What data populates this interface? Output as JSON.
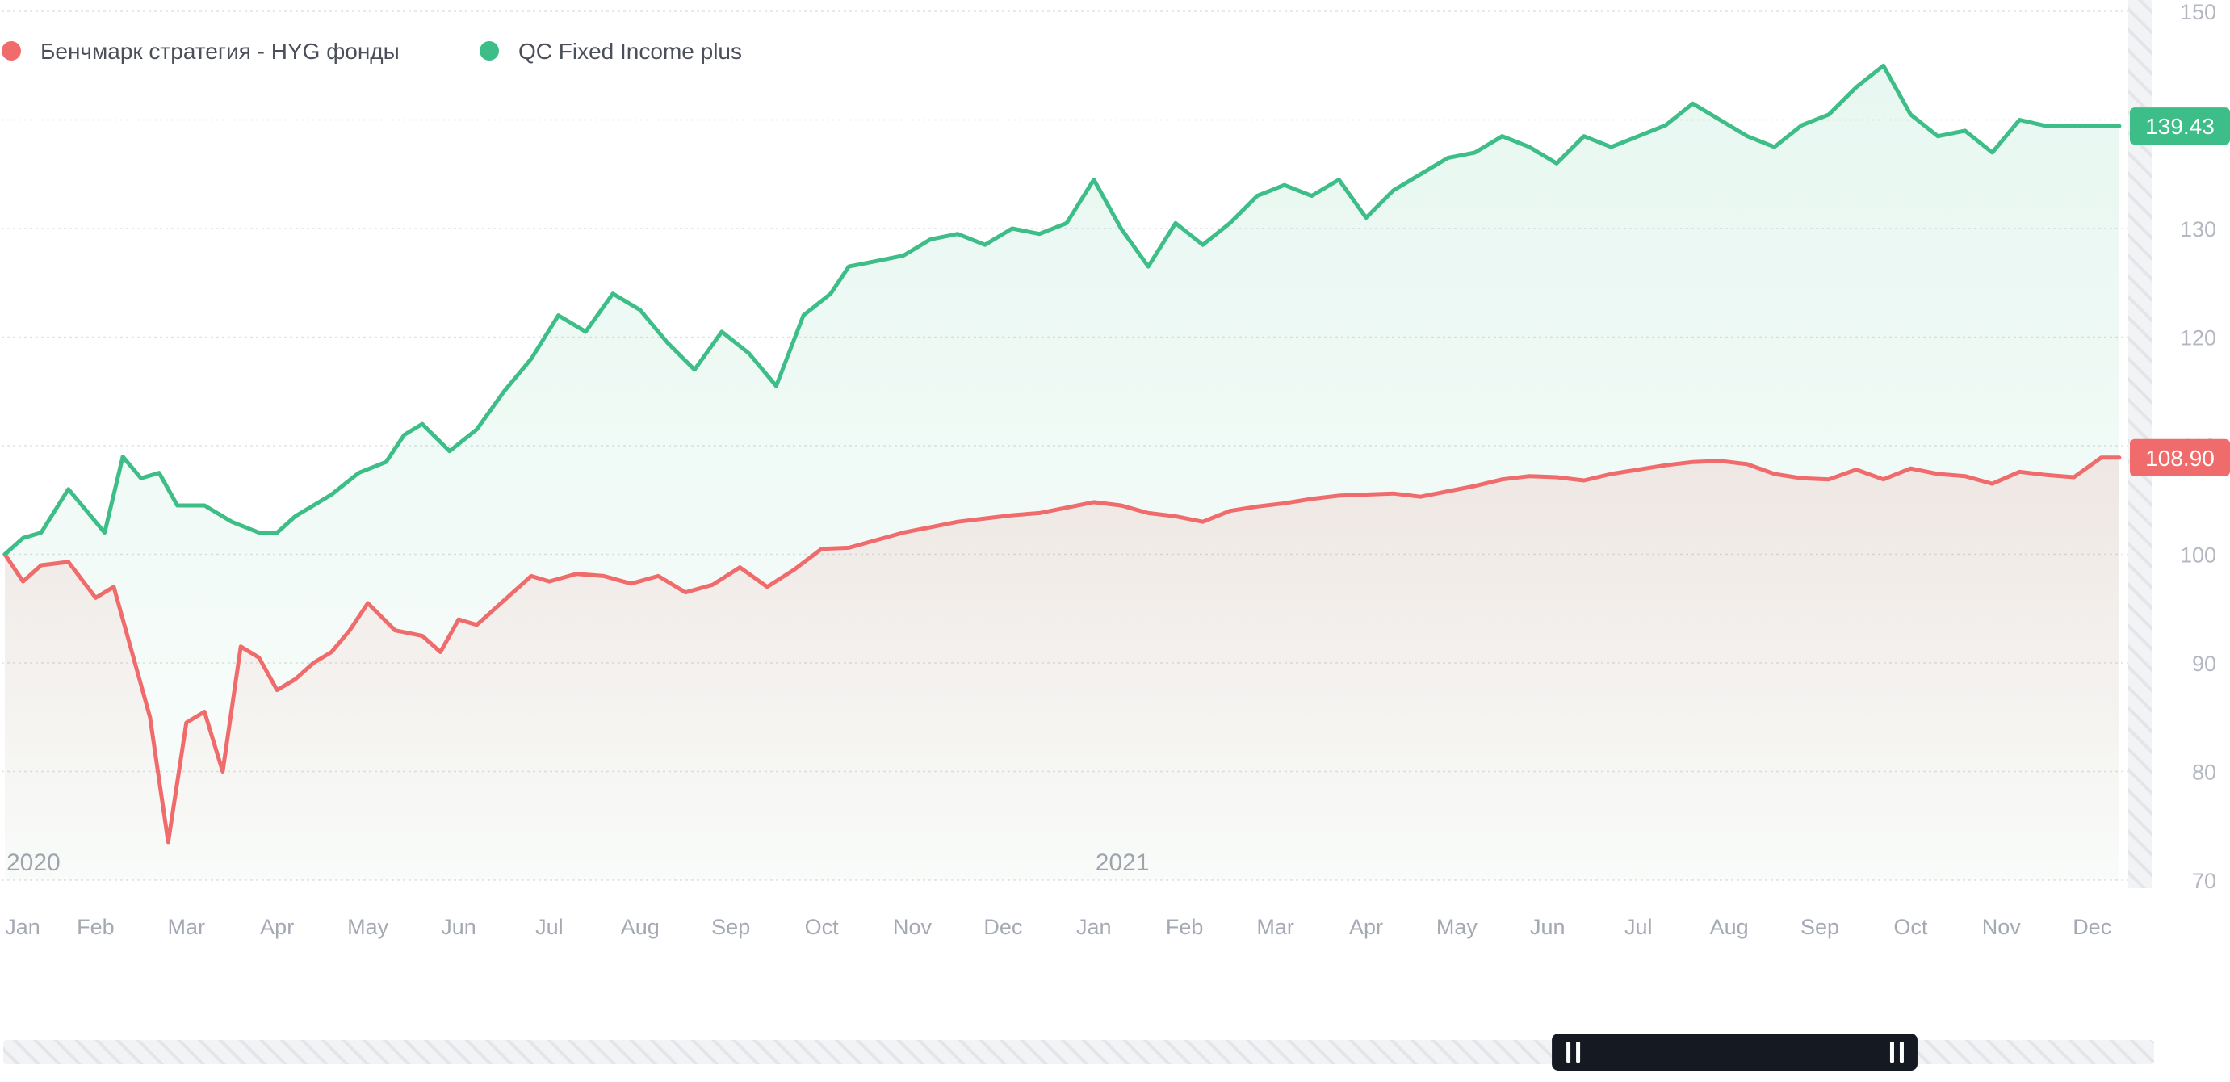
{
  "colors": {
    "benchmark": "#f06b6b",
    "strategy": "#3dbd87",
    "grid": "#dfe2e7",
    "tick": "#b3b8c2",
    "navigator_handle": "#151a22"
  },
  "chart_data": {
    "type": "line",
    "yaxis": {
      "ticks": [
        70,
        80,
        90,
        100,
        110,
        120,
        130,
        140,
        150
      ],
      "range": [
        70,
        150
      ],
      "position": "right",
      "grid": true
    },
    "xaxis": {
      "tick_labels": [
        "Jan",
        "Feb",
        "Mar",
        "Apr",
        "May",
        "Jun",
        "Jul",
        "Aug",
        "Sep",
        "Oct",
        "Nov",
        "Dec",
        "Jan",
        "Feb",
        "Mar",
        "Apr",
        "May",
        "Jun",
        "Jul",
        "Aug",
        "Sep",
        "Oct",
        "Nov",
        "Dec"
      ],
      "year_labels": [
        {
          "label": "2020",
          "month_index": 0
        },
        {
          "label": "2021",
          "month_index": 12
        }
      ],
      "range_months": [
        0,
        23.3
      ]
    },
    "legend": {
      "placement": "top-left"
    },
    "series": [
      {
        "name": "Бенчмарк стратегия - HYG фонды",
        "color": "#f06b6b",
        "last_value": "108.90",
        "x_month": [
          0,
          0.2,
          0.4,
          0.7,
          1.0,
          1.2,
          1.4,
          1.6,
          1.8,
          2.0,
          2.2,
          2.4,
          2.6,
          2.8,
          3.0,
          3.2,
          3.4,
          3.6,
          3.8,
          4.0,
          4.3,
          4.6,
          4.8,
          5.0,
          5.2,
          5.4,
          5.6,
          5.8,
          6.0,
          6.3,
          6.6,
          6.9,
          7.2,
          7.5,
          7.8,
          8.1,
          8.4,
          8.7,
          9.0,
          9.3,
          9.6,
          9.9,
          10.2,
          10.5,
          10.8,
          11.1,
          11.4,
          11.7,
          12.0,
          12.3,
          12.6,
          12.9,
          13.2,
          13.5,
          13.8,
          14.1,
          14.4,
          14.7,
          15.0,
          15.3,
          15.6,
          15.9,
          16.2,
          16.5,
          16.8,
          17.1,
          17.4,
          17.7,
          18.0,
          18.3,
          18.6,
          18.9,
          19.2,
          19.5,
          19.8,
          20.1,
          20.4,
          20.7,
          21.0,
          21.3,
          21.6,
          21.9,
          22.2,
          22.5,
          22.8,
          23.1,
          23.3
        ],
        "values": [
          100,
          97.5,
          99,
          99.3,
          96,
          97,
          91,
          85,
          73.5,
          84.5,
          85.5,
          80,
          91.5,
          90.5,
          87.5,
          88.5,
          90,
          91,
          93,
          95.5,
          93,
          92.5,
          91,
          94,
          93.5,
          95,
          96.5,
          98,
          97.5,
          98.2,
          98,
          97.3,
          98,
          96.5,
          97.2,
          98.8,
          97,
          98.6,
          100.5,
          100.6,
          101.3,
          102,
          102.5,
          103,
          103.3,
          103.6,
          103.8,
          104.3,
          104.8,
          104.5,
          103.8,
          103.5,
          103,
          104,
          104.4,
          104.7,
          105.1,
          105.4,
          105.5,
          105.6,
          105.3,
          105.8,
          106.3,
          106.9,
          107.2,
          107.1,
          106.8,
          107.4,
          107.8,
          108.2,
          108.5,
          108.6,
          108.3,
          107.4,
          107.0,
          106.9,
          107.8,
          106.9,
          107.9,
          107.4,
          107.2,
          106.5,
          107.6,
          107.3,
          107.1,
          108.9,
          108.9
        ]
      },
      {
        "name": "QC Fixed Income plus",
        "color": "#3dbd87",
        "last_value": "139.43",
        "x_month": [
          0,
          0.2,
          0.4,
          0.7,
          0.9,
          1.1,
          1.3,
          1.5,
          1.7,
          1.9,
          2.2,
          2.5,
          2.8,
          3.0,
          3.2,
          3.4,
          3.6,
          3.9,
          4.2,
          4.4,
          4.6,
          4.9,
          5.2,
          5.5,
          5.8,
          6.1,
          6.4,
          6.7,
          7.0,
          7.3,
          7.6,
          7.9,
          8.2,
          8.5,
          8.8,
          9.1,
          9.3,
          9.6,
          9.9,
          10.2,
          10.5,
          10.8,
          11.1,
          11.4,
          11.7,
          12.0,
          12.3,
          12.6,
          12.9,
          13.2,
          13.5,
          13.8,
          14.1,
          14.4,
          14.7,
          15.0,
          15.3,
          15.6,
          15.9,
          16.2,
          16.5,
          16.8,
          17.1,
          17.4,
          17.7,
          18.0,
          18.3,
          18.6,
          18.9,
          19.2,
          19.5,
          19.8,
          20.1,
          20.4,
          20.7,
          21.0,
          21.3,
          21.6,
          21.9,
          22.2,
          22.5,
          22.8,
          23.1,
          23.3
        ],
        "values": [
          100,
          101.5,
          102,
          106,
          104,
          102,
          109,
          107,
          107.5,
          104.5,
          104.5,
          103,
          102,
          102,
          103.5,
          104.5,
          105.5,
          107.5,
          108.5,
          111,
          112,
          109.5,
          111.5,
          115,
          118,
          122,
          120.5,
          124,
          122.5,
          119.5,
          117,
          120.5,
          118.5,
          115.5,
          122,
          124,
          126.5,
          127,
          127.5,
          129,
          129.5,
          128.5,
          130,
          129.5,
          130.5,
          134.5,
          130,
          126.5,
          130.5,
          128.5,
          130.5,
          133,
          134,
          133,
          134.5,
          131,
          133.5,
          135,
          136.5,
          137,
          138.5,
          137.5,
          136,
          138.5,
          137.5,
          138.5,
          139.5,
          141.5,
          140,
          138.5,
          137.5,
          139.5,
          140.5,
          143,
          145,
          140.5,
          138.5,
          139,
          137,
          140,
          139.43,
          139.43,
          139.43,
          139.43
        ]
      }
    ]
  },
  "navigator": {
    "window_start": 0.72,
    "window_end": 0.89
  }
}
